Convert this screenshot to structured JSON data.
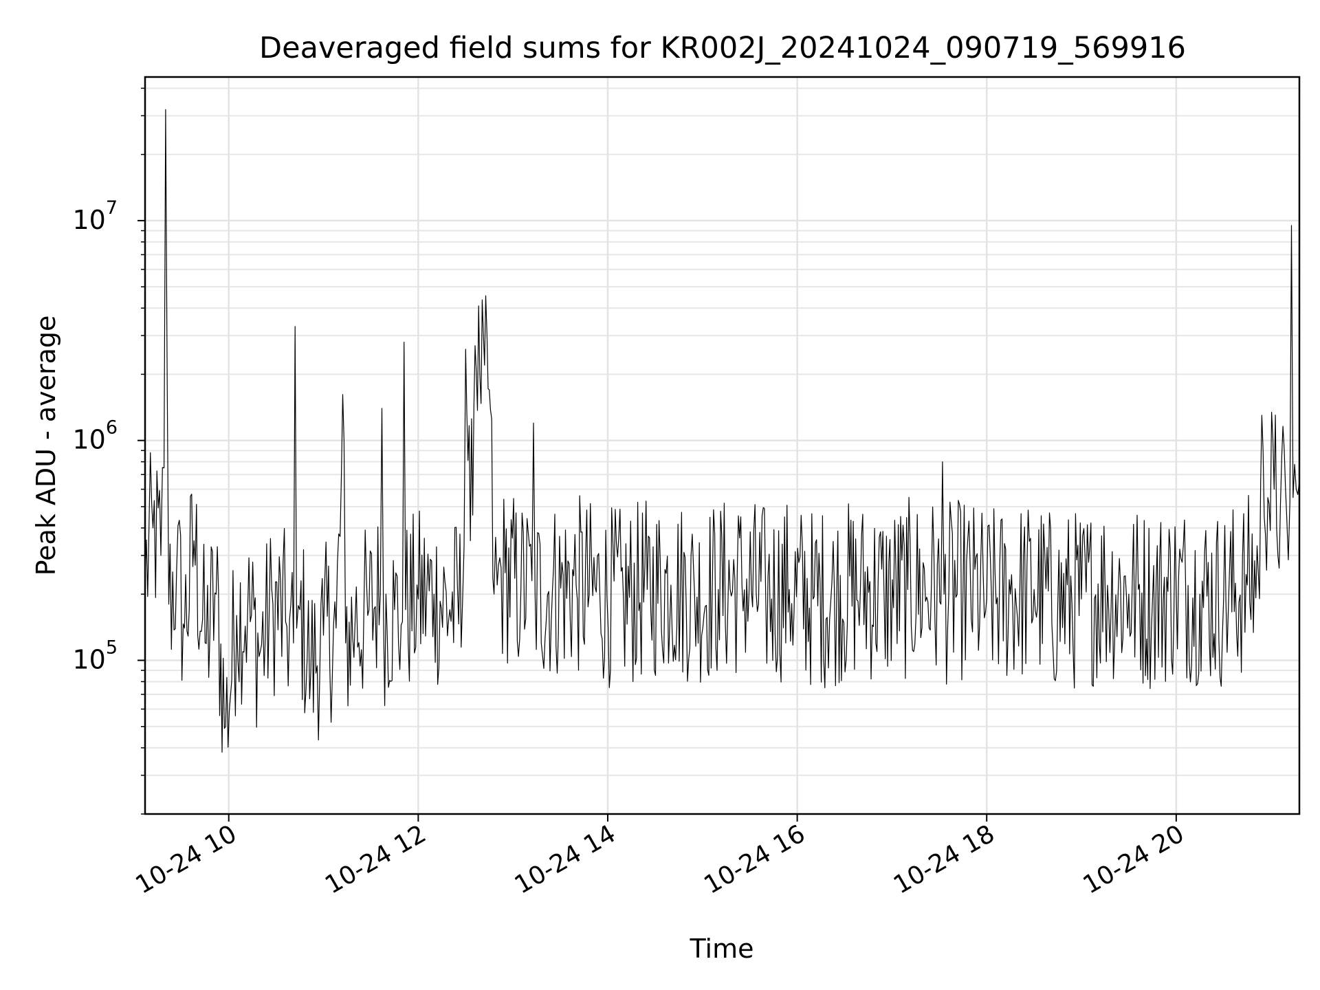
{
  "chart_data": {
    "type": "line",
    "title": "Deaveraged field sums for KR002J_20241024_090719_569916",
    "xlabel": "Time",
    "ylabel": "Peak ADU - average",
    "x_type": "datetime",
    "xlim": [
      "2024-10-24 09:07",
      "2024-10-24 21:18"
    ],
    "ylim": [
      20000,
      45000000
    ],
    "y_scale": "log",
    "grid": true,
    "x_ticks": [
      {
        "value": "2024-10-24 10:00",
        "label": "10-24 10"
      },
      {
        "value": "2024-10-24 12:00",
        "label": "10-24 12"
      },
      {
        "value": "2024-10-24 14:00",
        "label": "10-24 14"
      },
      {
        "value": "2024-10-24 16:00",
        "label": "10-24 16"
      },
      {
        "value": "2024-10-24 18:00",
        "label": "10-24 18"
      },
      {
        "value": "2024-10-24 20:00",
        "label": "10-24 20"
      }
    ],
    "y_ticks": [
      {
        "value": 100000,
        "base": "10",
        "exp": "5"
      },
      {
        "value": 1000000,
        "base": "10",
        "exp": "6"
      },
      {
        "value": 10000000,
        "base": "10",
        "exp": "7"
      }
    ],
    "line_color": "#000000",
    "series": [
      {
        "x": [
          "2024-10-24 09:07",
          "2024-10-24 09:12",
          "2024-10-24 09:17",
          "2024-10-24 09:19",
          "2024-10-24 09:20",
          "2024-10-24 09:22",
          "2024-10-24 09:27",
          "2024-10-24 09:32",
          "2024-10-24 09:38",
          "2024-10-24 09:45",
          "2024-10-24 09:52",
          "2024-10-24 09:58",
          "2024-10-24 10:05",
          "2024-10-24 10:12",
          "2024-10-24 10:20",
          "2024-10-24 10:28",
          "2024-10-24 10:36",
          "2024-10-24 10:41",
          "2024-10-24 10:42",
          "2024-10-24 10:43",
          "2024-10-24 10:45",
          "2024-10-24 10:52",
          "2024-10-24 11:00",
          "2024-10-24 11:08",
          "2024-10-24 11:13",
          "2024-10-24 11:14",
          "2024-10-24 11:20",
          "2024-10-24 11:28",
          "2024-10-24 11:36",
          "2024-10-24 11:37",
          "2024-10-24 11:38",
          "2024-10-24 11:45",
          "2024-10-24 11:50",
          "2024-10-24 11:51",
          "2024-10-24 11:52",
          "2024-10-24 12:00",
          "2024-10-24 12:10",
          "2024-10-24 12:20",
          "2024-10-24 12:28",
          "2024-10-24 12:30",
          "2024-10-24 12:33",
          "2024-10-24 12:36",
          "2024-10-24 12:39",
          "2024-10-24 12:42",
          "2024-10-24 12:45",
          "2024-10-24 12:48",
          "2024-10-24 12:50",
          "2024-10-24 12:55",
          "2024-10-24 13:05",
          "2024-10-24 13:12",
          "2024-10-24 13:13",
          "2024-10-24 13:14",
          "2024-10-24 13:25",
          "2024-10-24 13:40",
          "2024-10-24 13:55",
          "2024-10-24 14:10",
          "2024-10-24 14:25",
          "2024-10-24 14:40",
          "2024-10-24 14:55",
          "2024-10-24 15:10",
          "2024-10-24 15:25",
          "2024-10-24 15:40",
          "2024-10-24 15:55",
          "2024-10-24 16:10",
          "2024-10-24 16:25",
          "2024-10-24 16:40",
          "2024-10-24 16:55",
          "2024-10-24 17:10",
          "2024-10-24 17:25",
          "2024-10-24 17:31",
          "2024-10-24 17:32",
          "2024-10-24 17:33",
          "2024-10-24 17:45",
          "2024-10-24 18:00",
          "2024-10-24 18:15",
          "2024-10-24 18:30",
          "2024-10-24 18:45",
          "2024-10-24 19:00",
          "2024-10-24 19:15",
          "2024-10-24 19:30",
          "2024-10-24 19:45",
          "2024-10-24 20:00",
          "2024-10-24 20:15",
          "2024-10-24 20:30",
          "2024-10-24 20:45",
          "2024-10-24 20:52",
          "2024-10-24 20:55",
          "2024-10-24 20:58",
          "2024-10-24 21:02",
          "2024-10-24 21:06",
          "2024-10-24 21:10",
          "2024-10-24 21:12",
          "2024-10-24 21:13",
          "2024-10-24 21:14",
          "2024-10-24 21:16",
          "2024-10-24 21:18"
        ],
        "y": [
          240000,
          400000,
          300000,
          750000,
          32000000,
          180000,
          260000,
          140000,
          350000,
          120000,
          200000,
          50000,
          160000,
          170000,
          110000,
          180000,
          150000,
          120000,
          3300000,
          140000,
          170000,
          90000,
          130000,
          140000,
          1000000,
          120000,
          150000,
          160000,
          200000,
          1400000,
          160000,
          170000,
          150000,
          2800000,
          170000,
          190000,
          200000,
          170000,
          180000,
          2600000,
          350000,
          2700000,
          2000000,
          2200000,
          1700000,
          200000,
          220000,
          250000,
          210000,
          230000,
          1200000,
          200000,
          210000,
          220000,
          200000,
          190000,
          210000,
          220000,
          200000,
          210000,
          220000,
          200000,
          210000,
          190000,
          200000,
          210000,
          200000,
          210000,
          220000,
          180000,
          800000,
          200000,
          210000,
          190000,
          200000,
          210000,
          180000,
          190000,
          210000,
          200000,
          190000,
          210000,
          200000,
          190000,
          220000,
          250000,
          900000,
          550000,
          600000,
          500000,
          450000,
          520000,
          9500000,
          550000,
          600000,
          650000
        ]
      }
    ]
  }
}
